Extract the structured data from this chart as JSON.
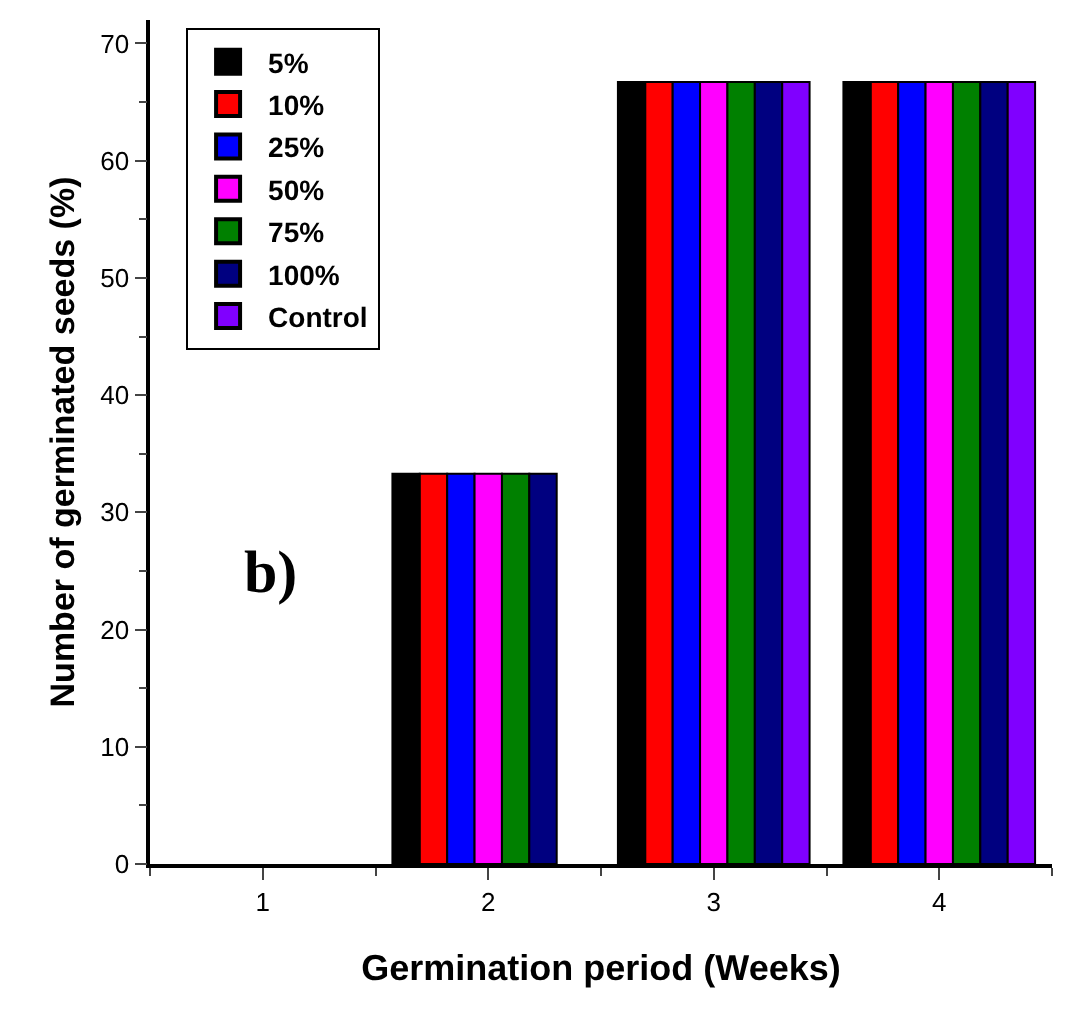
{
  "chart_data": {
    "type": "bar",
    "xlabel": "Germination period (Weeks)",
    "ylabel": "Number of germinated seeds (%)",
    "categories": [
      "1",
      "2",
      "3",
      "4"
    ],
    "series": [
      {
        "name": "5%",
        "color": "#000000",
        "values": [
          0,
          33.3,
          66.7,
          66.7
        ]
      },
      {
        "name": "10%",
        "color": "#ff0000",
        "values": [
          0,
          33.3,
          66.7,
          66.7
        ]
      },
      {
        "name": "25%",
        "color": "#0000ff",
        "values": [
          0,
          33.3,
          66.7,
          66.7
        ]
      },
      {
        "name": "50%",
        "color": "#ff00ff",
        "values": [
          0,
          33.3,
          66.7,
          66.7
        ]
      },
      {
        "name": "75%",
        "color": "#008000",
        "values": [
          0,
          33.3,
          66.7,
          66.7
        ]
      },
      {
        "name": "100%",
        "color": "#000080",
        "values": [
          0,
          33.3,
          66.7,
          66.7
        ]
      },
      {
        "name": "Control",
        "color": "#8000ff",
        "values": [
          0,
          0,
          66.7,
          66.7
        ]
      }
    ],
    "ylim": [
      0,
      72
    ],
    "yticks": [
      0,
      10,
      20,
      30,
      40,
      50,
      60,
      70
    ],
    "annotations": [
      "b)"
    ],
    "legend": "top left"
  }
}
